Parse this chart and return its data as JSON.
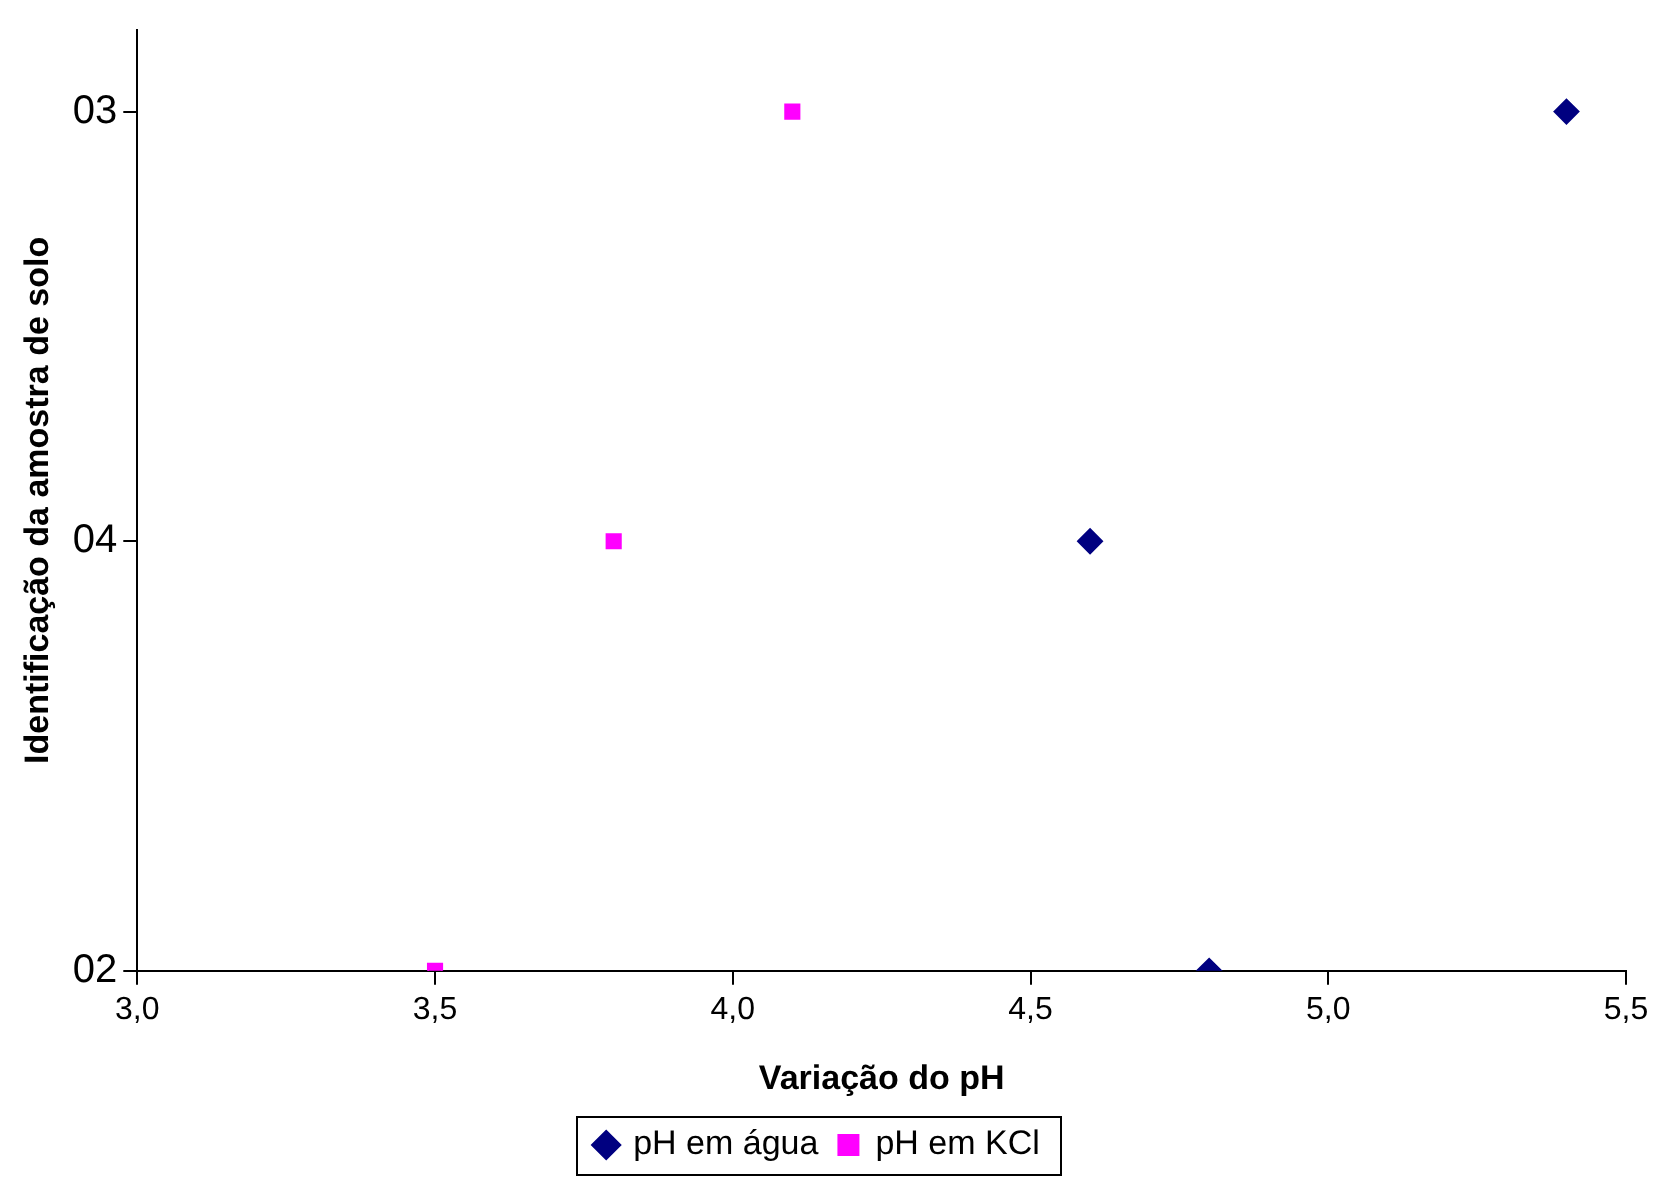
{
  "chart_data": {
    "type": "scatter",
    "orientation": "horizontal",
    "xlabel": "Variação do pH",
    "ylabel": "Identificação da amostra de solo",
    "categories": [
      "03",
      "04",
      "02"
    ],
    "xlim": [
      3.0,
      5.5
    ],
    "xticks": [
      {
        "value": 3.0,
        "label": "3,0"
      },
      {
        "value": 3.5,
        "label": "3,5"
      },
      {
        "value": 4.0,
        "label": "4,0"
      },
      {
        "value": 4.5,
        "label": "4,5"
      },
      {
        "value": 5.0,
        "label": "5,0"
      },
      {
        "value": 5.5,
        "label": "5,5"
      }
    ],
    "grid": false,
    "legend": "bottom",
    "series": [
      {
        "name": "pH em água",
        "color": "#000080",
        "marker": "diamond",
        "values": [
          5.4,
          4.6,
          4.8
        ]
      },
      {
        "name": "pH em KCl",
        "color": "#ff00ff",
        "marker": "square",
        "values": [
          4.1,
          3.8,
          3.5
        ]
      }
    ]
  }
}
